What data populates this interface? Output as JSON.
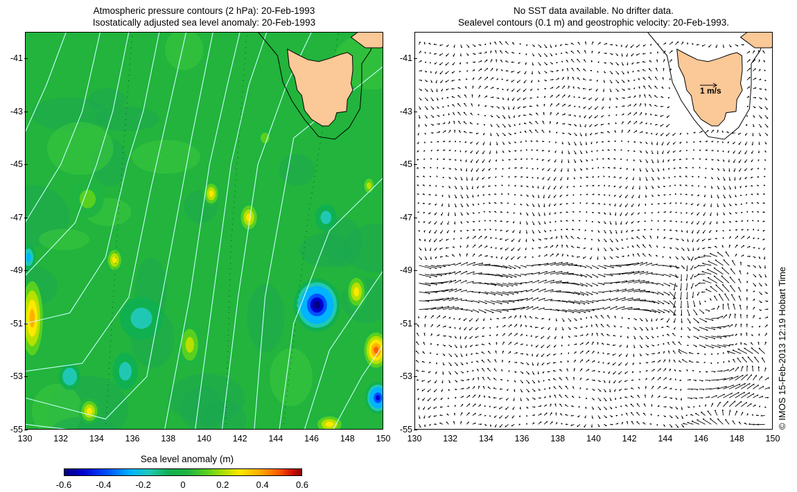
{
  "left_panel": {
    "title_line1": "Atmospheric pressure contours (2 hPa): 20-Feb-1993",
    "title_line2": "Isostatically adjusted sea level anomaly: 20-Feb-1993"
  },
  "right_panel": {
    "title_line1": "No SST data available.  No drifter data.",
    "title_line2": "Sealevel contours (0.1 m) and geostrophic velocity: 20-Feb-1993.",
    "scale_arrow_label": "1 m/s"
  },
  "axes": {
    "lon_range": [
      130,
      150
    ],
    "lat_range": [
      -55,
      -40
    ],
    "x_ticks": [
      "130",
      "132",
      "134",
      "136",
      "138",
      "140",
      "142",
      "144",
      "146",
      "148",
      "150"
    ],
    "y_ticks": [
      "-41",
      "-43",
      "-45",
      "-47",
      "-49",
      "-51",
      "-53",
      "-55"
    ]
  },
  "colorbar": {
    "title": "Sea level anomaly (m)",
    "range": [
      -0.6,
      0.6
    ],
    "tick_labels": [
      "-0.6",
      "-0.4",
      "-0.2",
      "0",
      "0.2",
      "0.4",
      "0.6"
    ]
  },
  "copyright": "© IMOS 15-Feb-2013 12:19 Hobart Time",
  "colors": {
    "ocean_base": "#22b43c",
    "land": "#fbc897",
    "pressure_contour": "#c8ffff",
    "arrow": "#000000"
  },
  "anomalies": [
    {
      "lon": 146.3,
      "lat": -50.3,
      "value": -0.55,
      "rx": 1.3,
      "ry": 1.0
    },
    {
      "lon": 149.7,
      "lat": -53.8,
      "value": -0.45,
      "rx": 0.7,
      "ry": 0.6
    },
    {
      "lon": 149.6,
      "lat": -52.0,
      "value": 0.45,
      "rx": 0.8,
      "ry": 0.8
    },
    {
      "lon": 148.5,
      "lat": -49.8,
      "value": 0.3,
      "rx": 0.6,
      "ry": 0.7
    },
    {
      "lon": 147.0,
      "lat": -54.8,
      "value": 0.32,
      "rx": 0.9,
      "ry": 0.4
    },
    {
      "lon": 130.4,
      "lat": -50.8,
      "value": 0.35,
      "rx": 0.6,
      "ry": 1.4
    },
    {
      "lon": 133.6,
      "lat": -54.3,
      "value": 0.3,
      "rx": 0.6,
      "ry": 0.5
    },
    {
      "lon": 142.5,
      "lat": -47.0,
      "value": 0.25,
      "rx": 0.6,
      "ry": 0.6
    },
    {
      "lon": 135.0,
      "lat": -48.6,
      "value": 0.25,
      "rx": 0.5,
      "ry": 0.5
    },
    {
      "lon": 139.2,
      "lat": -51.8,
      "value": 0.22,
      "rx": 0.7,
      "ry": 0.9
    },
    {
      "lon": 140.4,
      "lat": -46.1,
      "value": 0.25,
      "rx": 0.5,
      "ry": 0.5
    },
    {
      "lon": 133.5,
      "lat": -46.3,
      "value": 0.15,
      "rx": 0.9,
      "ry": 0.7
    },
    {
      "lon": 149.2,
      "lat": -45.8,
      "value": 0.18,
      "rx": 0.4,
      "ry": 0.4
    },
    {
      "lon": 136.5,
      "lat": -50.8,
      "value": -0.15,
      "rx": 1.2,
      "ry": 0.8
    },
    {
      "lon": 132.5,
      "lat": -53.0,
      "value": -0.18,
      "rx": 0.6,
      "ry": 0.5
    },
    {
      "lon": 135.6,
      "lat": -52.8,
      "value": -0.15,
      "rx": 0.7,
      "ry": 0.7
    },
    {
      "lon": 130.2,
      "lat": -48.5,
      "value": -0.2,
      "rx": 0.4,
      "ry": 0.5
    },
    {
      "lon": 146.8,
      "lat": -47.0,
      "value": -0.12,
      "rx": 0.6,
      "ry": 0.5
    },
    {
      "lon": 143.4,
      "lat": -44.0,
      "value": 0.15,
      "rx": 0.5,
      "ry": 0.4
    }
  ],
  "pressure_contours": [
    [
      [
        130,
        -43.8
      ],
      [
        131.2,
        -42
      ],
      [
        132.3,
        -40
      ]
    ],
    [
      [
        130,
        -47.2
      ],
      [
        132.0,
        -45
      ],
      [
        133.2,
        -43
      ],
      [
        134.2,
        -40
      ]
    ],
    [
      [
        130,
        -49.2
      ],
      [
        132.8,
        -47.2
      ],
      [
        134.0,
        -45
      ],
      [
        134.9,
        -43
      ],
      [
        135.8,
        -40
      ]
    ],
    [
      [
        130,
        -51.0
      ],
      [
        132.5,
        -50.6
      ],
      [
        134.5,
        -48.5
      ],
      [
        135.7,
        -45
      ],
      [
        136.6,
        -43
      ],
      [
        137.5,
        -40
      ]
    ],
    [
      [
        130,
        -52.8
      ],
      [
        133.2,
        -52.5
      ],
      [
        135.8,
        -50
      ],
      [
        137.0,
        -46
      ],
      [
        138.0,
        -43
      ],
      [
        139.0,
        -40
      ]
    ],
    [
      [
        130,
        -53.8
      ],
      [
        134.5,
        -54.6
      ],
      [
        136.8,
        -53
      ],
      [
        138.2,
        -48
      ],
      [
        139.3,
        -44
      ],
      [
        140.5,
        -40
      ]
    ],
    [
      [
        137.8,
        -55
      ],
      [
        139.2,
        -50
      ],
      [
        140.3,
        -45
      ],
      [
        141.3,
        -42
      ],
      [
        142.0,
        -40
      ]
    ],
    [
      [
        139.5,
        -55
      ],
      [
        140.5,
        -50
      ],
      [
        141.5,
        -45
      ],
      [
        142.5,
        -42
      ],
      [
        143.5,
        -40
      ]
    ],
    [
      [
        141.0,
        -55
      ],
      [
        141.9,
        -50
      ],
      [
        143.0,
        -45
      ],
      [
        144.6,
        -42
      ],
      [
        146.0,
        -40
      ]
    ],
    [
      [
        142.8,
        -55
      ],
      [
        143.4,
        -50
      ],
      [
        145.0,
        -44
      ],
      [
        150,
        -41.3
      ]
    ],
    [
      [
        144.2,
        -55
      ],
      [
        145.0,
        -51
      ],
      [
        147.0,
        -47.5
      ],
      [
        150,
        -45.5
      ]
    ],
    [
      [
        145.6,
        -55
      ],
      [
        147.0,
        -52
      ],
      [
        150,
        -49.0
      ]
    ],
    [
      [
        147.2,
        -55
      ],
      [
        148.8,
        -53
      ],
      [
        150,
        -51.8
      ]
    ],
    [
      [
        130,
        -54.8
      ],
      [
        132.5,
        -55
      ]
    ]
  ],
  "tasmania_outline": [
    [
      144.65,
      -40.65
    ],
    [
      145.2,
      -40.85
    ],
    [
      145.8,
      -41.05
    ],
    [
      146.4,
      -41.12
    ],
    [
      147.0,
      -41.0
    ],
    [
      147.6,
      -40.85
    ],
    [
      148.0,
      -40.78
    ],
    [
      148.28,
      -40.9
    ],
    [
      148.3,
      -41.45
    ],
    [
      148.2,
      -41.95
    ],
    [
      148.3,
      -42.2
    ],
    [
      148.0,
      -42.55
    ],
    [
      147.95,
      -43.0
    ],
    [
      147.4,
      -43.05
    ],
    [
      147.3,
      -43.3
    ],
    [
      146.95,
      -43.55
    ],
    [
      146.6,
      -43.55
    ],
    [
      146.0,
      -43.3
    ],
    [
      145.6,
      -42.95
    ],
    [
      145.45,
      -42.4
    ],
    [
      145.2,
      -42.2
    ],
    [
      145.05,
      -41.7
    ],
    [
      144.75,
      -41.3
    ],
    [
      144.65,
      -40.65
    ]
  ],
  "mainland_corner": [
    [
      150,
      -40
    ],
    [
      148.6,
      -40
    ],
    [
      148.2,
      -40.2
    ],
    [
      149.0,
      -40.6
    ],
    [
      149.9,
      -40.6
    ],
    [
      150,
      -40.55
    ]
  ],
  "shelf_contour": [
    [
      143.0,
      -40
    ],
    [
      144.1,
      -40.9
    ],
    [
      144.4,
      -41.9
    ],
    [
      144.9,
      -42.6
    ],
    [
      145.6,
      -43.3
    ],
    [
      146.4,
      -43.95
    ],
    [
      147.3,
      -44.05
    ],
    [
      148.1,
      -43.6
    ],
    [
      148.7,
      -42.9
    ],
    [
      148.8,
      -42.0
    ],
    [
      148.8,
      -41.2
    ],
    [
      149.3,
      -40.7
    ],
    [
      149.6,
      -40
    ]
  ],
  "eddy": {
    "lon": 146.6,
    "lat": -50.3
  }
}
